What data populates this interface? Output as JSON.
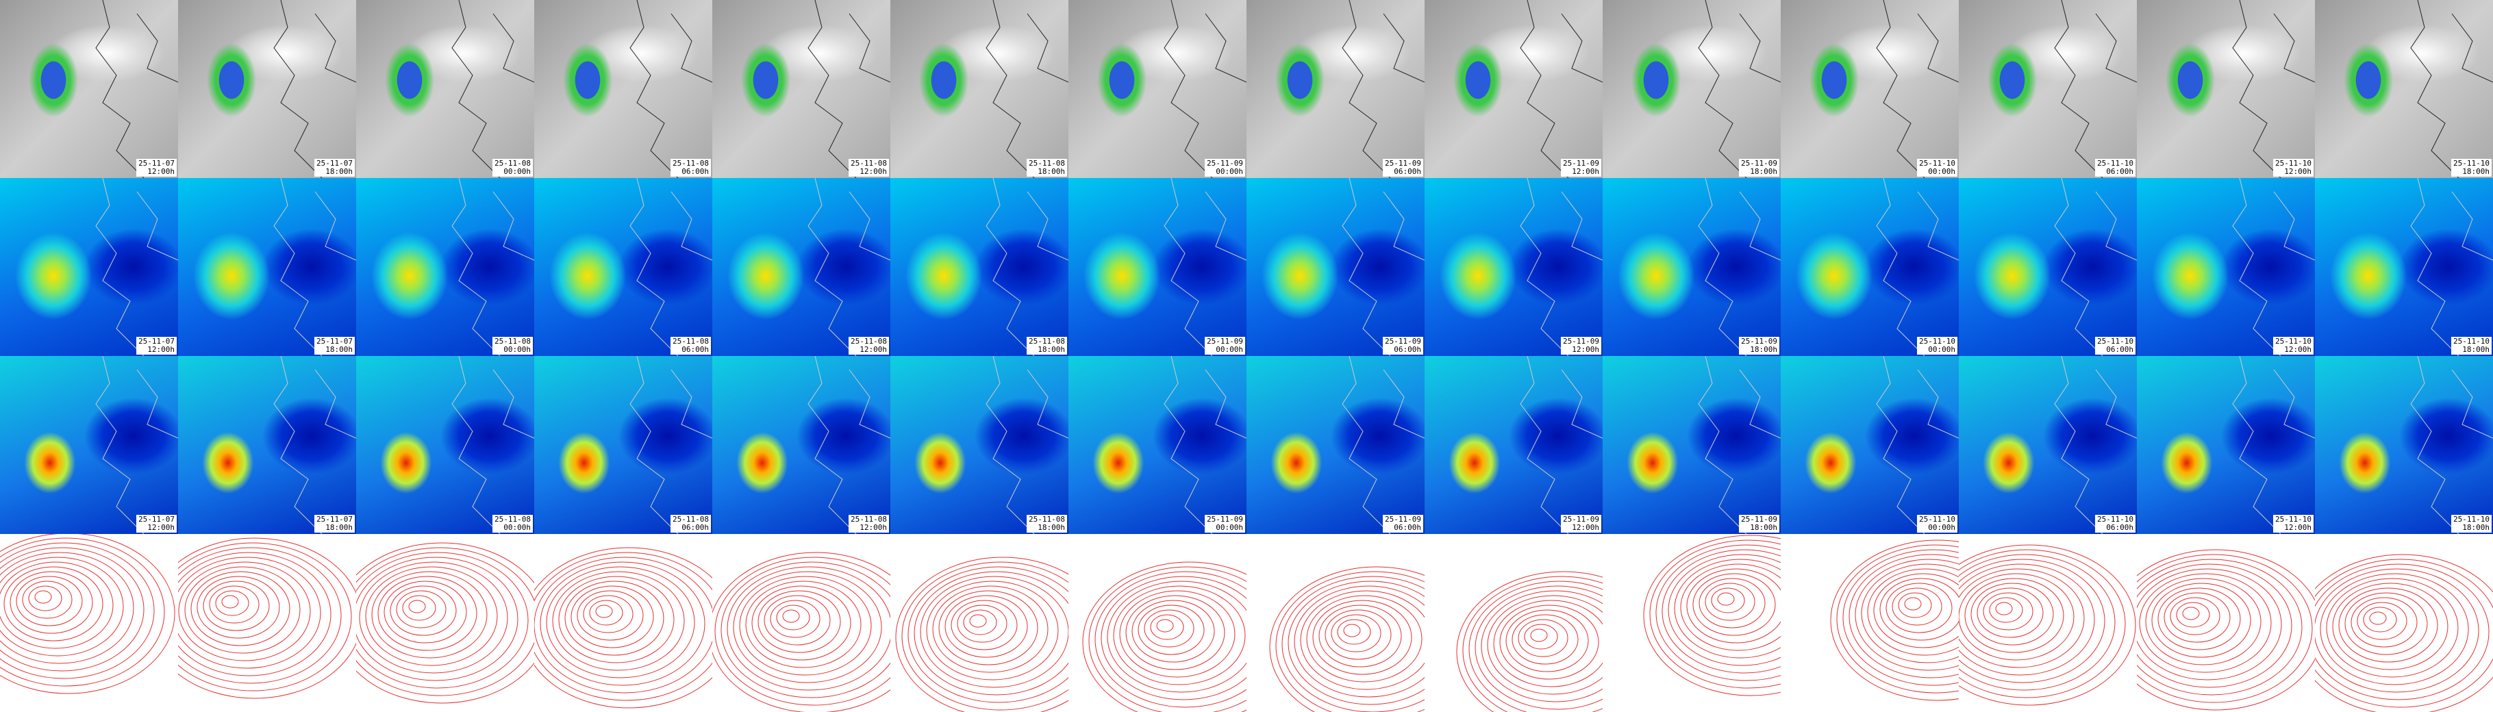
{
  "columns": [
    {
      "date": "25-11-07",
      "time": "12:00h"
    },
    {
      "date": "25-11-07",
      "time": "18:00h"
    },
    {
      "date": "25-11-08",
      "time": "00:00h"
    },
    {
      "date": "25-11-08",
      "time": "06:00h"
    },
    {
      "date": "25-11-08",
      "time": "12:00h"
    },
    {
      "date": "25-11-08",
      "time": "18:00h"
    },
    {
      "date": "25-11-09",
      "time": "00:00h"
    },
    {
      "date": "25-11-09",
      "time": "06:00h"
    },
    {
      "date": "25-11-09",
      "time": "12:00h"
    },
    {
      "date": "25-11-09",
      "time": "18:00h"
    },
    {
      "date": "25-11-10",
      "time": "00:00h"
    },
    {
      "date": "25-11-10",
      "time": "06:00h"
    },
    {
      "date": "25-11-10",
      "time": "12:00h"
    },
    {
      "date": "25-11-10",
      "time": "18:00h"
    }
  ]
}
